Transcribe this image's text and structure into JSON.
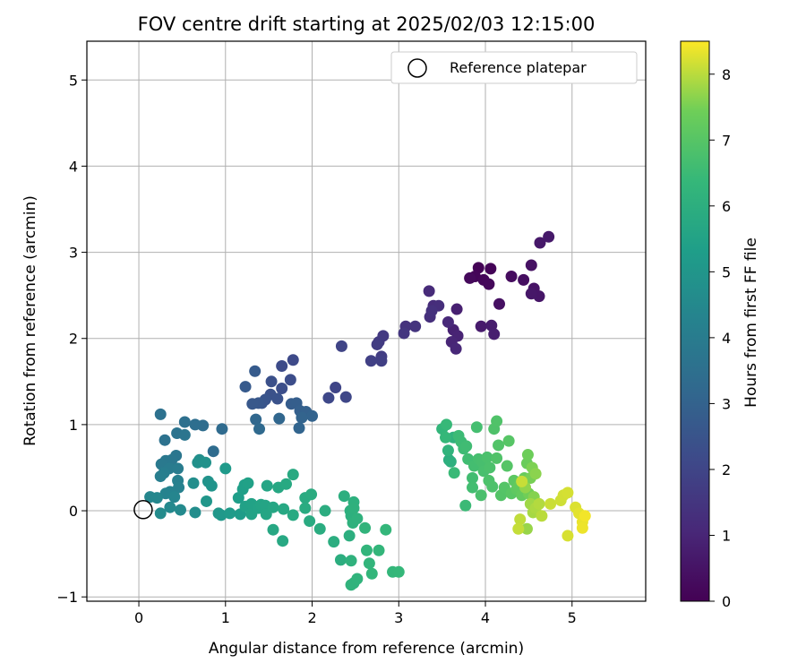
{
  "chart_data": {
    "type": "scatter",
    "title": "FOV centre drift starting at 2025/02/03 12:15:00",
    "xlabel": "Angular distance from reference (arcmin)",
    "ylabel": "Rotation from reference (arcmin)",
    "xlim": [
      -0.6,
      5.85
    ],
    "ylim": [
      -1.05,
      5.45
    ],
    "x_ticks": [
      0,
      1,
      2,
      3,
      4,
      5
    ],
    "y_ticks": [
      -1,
      0,
      1,
      2,
      3,
      4,
      5
    ],
    "x_tick_labels": [
      "0",
      "1",
      "2",
      "3",
      "4",
      "5"
    ],
    "y_tick_labels": [
      "−1",
      "0",
      "1",
      "2",
      "3",
      "4",
      "5"
    ],
    "grid": true,
    "legend": {
      "position": "top-right",
      "entries": [
        "Reference platepar"
      ]
    },
    "reference_point": {
      "x": 0,
      "y": 0
    },
    "colorbar": {
      "label": "Hours from first FF file",
      "range": [
        0,
        8.5
      ],
      "ticks": [
        0,
        1,
        2,
        3,
        4,
        5,
        6,
        7,
        8
      ],
      "tick_labels": [
        "0",
        "1",
        "2",
        "3",
        "4",
        "5",
        "6",
        "7",
        "8"
      ],
      "colormap": "viridis"
    },
    "points": [
      {
        "x": 3.92,
        "y": 2.82,
        "h": 0.05
      },
      {
        "x": 4.06,
        "y": 2.81,
        "h": 0.08
      },
      {
        "x": 3.88,
        "y": 2.72,
        "h": 0.12
      },
      {
        "x": 3.98,
        "y": 2.68,
        "h": 0.15
      },
      {
        "x": 4.04,
        "y": 2.63,
        "h": 0.18
      },
      {
        "x": 3.82,
        "y": 2.7,
        "h": 0.22
      },
      {
        "x": 4.3,
        "y": 2.72,
        "h": 0.3
      },
      {
        "x": 4.44,
        "y": 2.68,
        "h": 0.35
      },
      {
        "x": 4.16,
        "y": 2.4,
        "h": 0.4
      },
      {
        "x": 4.53,
        "y": 2.85,
        "h": 0.45
      },
      {
        "x": 4.56,
        "y": 2.58,
        "h": 0.5
      },
      {
        "x": 4.62,
        "y": 2.49,
        "h": 0.55
      },
      {
        "x": 4.53,
        "y": 2.52,
        "h": 0.6
      },
      {
        "x": 4.63,
        "y": 3.11,
        "h": 0.62
      },
      {
        "x": 4.73,
        "y": 3.18,
        "h": 0.65
      },
      {
        "x": 3.95,
        "y": 2.14,
        "h": 0.7
      },
      {
        "x": 4.07,
        "y": 2.15,
        "h": 0.75
      },
      {
        "x": 4.1,
        "y": 2.05,
        "h": 0.8
      },
      {
        "x": 3.67,
        "y": 2.34,
        "h": 0.85
      },
      {
        "x": 3.63,
        "y": 2.1,
        "h": 0.9
      },
      {
        "x": 3.68,
        "y": 2.03,
        "h": 0.95
      },
      {
        "x": 3.61,
        "y": 1.96,
        "h": 1.0
      },
      {
        "x": 3.66,
        "y": 1.88,
        "h": 1.05
      },
      {
        "x": 3.57,
        "y": 2.19,
        "h": 1.1
      },
      {
        "x": 3.35,
        "y": 2.55,
        "h": 1.15
      },
      {
        "x": 3.4,
        "y": 2.38,
        "h": 1.2
      },
      {
        "x": 3.46,
        "y": 2.38,
        "h": 1.25
      },
      {
        "x": 3.36,
        "y": 2.25,
        "h": 1.3
      },
      {
        "x": 3.38,
        "y": 2.32,
        "h": 1.35
      },
      {
        "x": 3.08,
        "y": 2.14,
        "h": 1.4
      },
      {
        "x": 3.19,
        "y": 2.14,
        "h": 1.45
      },
      {
        "x": 3.06,
        "y": 2.06,
        "h": 1.5
      },
      {
        "x": 2.82,
        "y": 2.03,
        "h": 1.6
      },
      {
        "x": 2.77,
        "y": 1.96,
        "h": 1.65
      },
      {
        "x": 2.75,
        "y": 1.93,
        "h": 1.7
      },
      {
        "x": 2.8,
        "y": 1.79,
        "h": 1.75
      },
      {
        "x": 2.8,
        "y": 1.74,
        "h": 1.8
      },
      {
        "x": 2.68,
        "y": 1.74,
        "h": 1.85
      },
      {
        "x": 2.34,
        "y": 1.91,
        "h": 1.95
      },
      {
        "x": 2.27,
        "y": 1.43,
        "h": 2.0
      },
      {
        "x": 2.39,
        "y": 1.32,
        "h": 2.05
      },
      {
        "x": 2.19,
        "y": 1.31,
        "h": 2.1
      },
      {
        "x": 1.78,
        "y": 1.75,
        "h": 2.15
      },
      {
        "x": 1.65,
        "y": 1.68,
        "h": 2.2
      },
      {
        "x": 1.75,
        "y": 1.52,
        "h": 2.25
      },
      {
        "x": 1.65,
        "y": 1.42,
        "h": 2.3
      },
      {
        "x": 1.53,
        "y": 1.5,
        "h": 2.35
      },
      {
        "x": 1.52,
        "y": 1.35,
        "h": 2.4
      },
      {
        "x": 1.6,
        "y": 1.3,
        "h": 2.45
      },
      {
        "x": 1.46,
        "y": 1.29,
        "h": 2.5
      },
      {
        "x": 1.42,
        "y": 1.25,
        "h": 2.55
      },
      {
        "x": 1.38,
        "y": 1.25,
        "h": 2.6
      },
      {
        "x": 1.31,
        "y": 1.24,
        "h": 2.65
      },
      {
        "x": 1.23,
        "y": 1.44,
        "h": 2.7
      },
      {
        "x": 1.34,
        "y": 1.62,
        "h": 2.75
      },
      {
        "x": 1.76,
        "y": 1.24,
        "h": 2.8
      },
      {
        "x": 1.82,
        "y": 1.25,
        "h": 2.85
      },
      {
        "x": 1.86,
        "y": 1.16,
        "h": 2.9
      },
      {
        "x": 1.93,
        "y": 1.15,
        "h": 2.95
      },
      {
        "x": 2.0,
        "y": 1.1,
        "h": 3.0
      },
      {
        "x": 1.88,
        "y": 1.08,
        "h": 3.05
      },
      {
        "x": 1.85,
        "y": 0.96,
        "h": 3.1
      },
      {
        "x": 1.62,
        "y": 1.07,
        "h": 3.15
      },
      {
        "x": 1.35,
        "y": 1.06,
        "h": 3.2
      },
      {
        "x": 1.39,
        "y": 0.95,
        "h": 3.25
      },
      {
        "x": 0.96,
        "y": 0.95,
        "h": 3.3
      },
      {
        "x": 0.86,
        "y": 0.69,
        "h": 3.35
      },
      {
        "x": 0.74,
        "y": 0.99,
        "h": 3.4
      },
      {
        "x": 0.65,
        "y": 1.0,
        "h": 3.45
      },
      {
        "x": 0.53,
        "y": 1.03,
        "h": 3.5
      },
      {
        "x": 0.25,
        "y": 1.12,
        "h": 3.55
      },
      {
        "x": 0.3,
        "y": 0.82,
        "h": 3.6
      },
      {
        "x": 0.44,
        "y": 0.9,
        "h": 3.65
      },
      {
        "x": 0.53,
        "y": 0.88,
        "h": 3.7
      },
      {
        "x": 0.43,
        "y": 0.64,
        "h": 3.75
      },
      {
        "x": 0.38,
        "y": 0.59,
        "h": 3.8
      },
      {
        "x": 0.31,
        "y": 0.58,
        "h": 3.85
      },
      {
        "x": 0.26,
        "y": 0.54,
        "h": 3.9
      },
      {
        "x": 0.35,
        "y": 0.49,
        "h": 3.95
      },
      {
        "x": 0.45,
        "y": 0.49,
        "h": 4.0
      },
      {
        "x": 0.29,
        "y": 0.44,
        "h": 4.05
      },
      {
        "x": 0.25,
        "y": 0.4,
        "h": 4.1
      },
      {
        "x": 0.45,
        "y": 0.35,
        "h": 4.15
      },
      {
        "x": 0.46,
        "y": 0.27,
        "h": 4.2
      },
      {
        "x": 0.36,
        "y": 0.22,
        "h": 4.25
      },
      {
        "x": 0.31,
        "y": 0.2,
        "h": 4.3
      },
      {
        "x": 0.41,
        "y": 0.16,
        "h": 4.35
      },
      {
        "x": 0.13,
        "y": 0.16,
        "h": 4.4
      },
      {
        "x": 0.21,
        "y": 0.15,
        "h": 4.45
      },
      {
        "x": 0.36,
        "y": 0.04,
        "h": 4.5
      },
      {
        "x": 0.48,
        "y": 0.01,
        "h": 4.55
      },
      {
        "x": 0.25,
        "y": -0.03,
        "h": 4.6
      },
      {
        "x": 0.65,
        "y": -0.02,
        "h": 4.65
      },
      {
        "x": 0.63,
        "y": 0.32,
        "h": 4.7
      },
      {
        "x": 0.7,
        "y": 0.59,
        "h": 4.75
      },
      {
        "x": 0.68,
        "y": 0.56,
        "h": 4.8
      },
      {
        "x": 0.77,
        "y": 0.56,
        "h": 4.85
      },
      {
        "x": 0.8,
        "y": 0.34,
        "h": 4.9
      },
      {
        "x": 0.84,
        "y": 0.29,
        "h": 4.95
      },
      {
        "x": 0.78,
        "y": 0.11,
        "h": 5.0
      },
      {
        "x": 0.92,
        "y": -0.03,
        "h": 5.05
      },
      {
        "x": 0.95,
        "y": -0.05,
        "h": 5.1
      },
      {
        "x": 1.0,
        "y": 0.49,
        "h": 5.15
      },
      {
        "x": 1.05,
        "y": -0.03,
        "h": 5.2
      },
      {
        "x": 1.17,
        "y": -0.04,
        "h": 5.25
      },
      {
        "x": 1.15,
        "y": 0.15,
        "h": 5.3
      },
      {
        "x": 1.2,
        "y": 0.25,
        "h": 5.35
      },
      {
        "x": 1.22,
        "y": 0.3,
        "h": 5.38
      },
      {
        "x": 1.26,
        "y": 0.32,
        "h": 5.42
      },
      {
        "x": 1.23,
        "y": 0.05,
        "h": 5.45
      },
      {
        "x": 1.3,
        "y": 0.08,
        "h": 5.48
      },
      {
        "x": 1.3,
        "y": -0.04,
        "h": 5.5
      },
      {
        "x": 1.38,
        "y": 0.03,
        "h": 5.52
      },
      {
        "x": 1.41,
        "y": 0.07,
        "h": 5.55
      },
      {
        "x": 1.46,
        "y": 0.06,
        "h": 5.58
      },
      {
        "x": 1.48,
        "y": 0.29,
        "h": 5.6
      },
      {
        "x": 1.47,
        "y": -0.04,
        "h": 5.62
      },
      {
        "x": 1.55,
        "y": 0.04,
        "h": 5.65
      },
      {
        "x": 1.55,
        "y": -0.22,
        "h": 5.68
      },
      {
        "x": 1.61,
        "y": 0.27,
        "h": 5.7
      },
      {
        "x": 1.67,
        "y": 0.02,
        "h": 5.72
      },
      {
        "x": 1.66,
        "y": -0.35,
        "h": 5.74
      },
      {
        "x": 1.7,
        "y": 0.31,
        "h": 5.76
      },
      {
        "x": 1.78,
        "y": 0.42,
        "h": 5.78
      },
      {
        "x": 1.78,
        "y": -0.05,
        "h": 5.8
      },
      {
        "x": 1.92,
        "y": 0.15,
        "h": 5.82
      },
      {
        "x": 1.97,
        "y": -0.12,
        "h": 5.84
      },
      {
        "x": 1.92,
        "y": 0.03,
        "h": 5.86
      },
      {
        "x": 1.99,
        "y": 0.19,
        "h": 5.88
      },
      {
        "x": 2.09,
        "y": -0.21,
        "h": 5.9
      },
      {
        "x": 2.15,
        "y": 0.0,
        "h": 5.92
      },
      {
        "x": 2.25,
        "y": -0.36,
        "h": 5.94
      },
      {
        "x": 2.33,
        "y": -0.57,
        "h": 5.96
      },
      {
        "x": 2.37,
        "y": 0.17,
        "h": 5.98
      },
      {
        "x": 2.43,
        "y": -0.29,
        "h": 6.0
      },
      {
        "x": 2.44,
        "y": 0.0,
        "h": 6.02
      },
      {
        "x": 2.45,
        "y": -0.06,
        "h": 6.04
      },
      {
        "x": 2.48,
        "y": 0.1,
        "h": 6.06
      },
      {
        "x": 2.48,
        "y": 0.03,
        "h": 6.08
      },
      {
        "x": 2.47,
        "y": -0.14,
        "h": 6.1
      },
      {
        "x": 2.52,
        "y": -0.09,
        "h": 6.12
      },
      {
        "x": 2.45,
        "y": -0.58,
        "h": 6.14
      },
      {
        "x": 2.48,
        "y": -0.84,
        "h": 6.16
      },
      {
        "x": 2.45,
        "y": -0.86,
        "h": 6.18
      },
      {
        "x": 2.52,
        "y": -0.79,
        "h": 6.2
      },
      {
        "x": 2.61,
        "y": -0.2,
        "h": 6.22
      },
      {
        "x": 2.63,
        "y": -0.46,
        "h": 6.24
      },
      {
        "x": 2.66,
        "y": -0.61,
        "h": 6.26
      },
      {
        "x": 2.69,
        "y": -0.73,
        "h": 6.28
      },
      {
        "x": 2.77,
        "y": -0.46,
        "h": 6.3
      },
      {
        "x": 2.85,
        "y": -0.22,
        "h": 6.32
      },
      {
        "x": 2.93,
        "y": -0.71,
        "h": 6.34
      },
      {
        "x": 3.0,
        "y": -0.71,
        "h": 6.36
      },
      {
        "x": 3.58,
        "y": 0.59,
        "h": 5.95
      },
      {
        "x": 3.6,
        "y": 0.57,
        "h": 6.05
      },
      {
        "x": 3.63,
        "y": 0.85,
        "h": 6.12
      },
      {
        "x": 3.57,
        "y": 0.7,
        "h": 6.2
      },
      {
        "x": 3.5,
        "y": 0.95,
        "h": 6.3
      },
      {
        "x": 3.54,
        "y": 0.85,
        "h": 6.38
      },
      {
        "x": 3.55,
        "y": 1.0,
        "h": 6.42
      },
      {
        "x": 3.64,
        "y": 0.44,
        "h": 6.45
      },
      {
        "x": 3.77,
        "y": 0.06,
        "h": 6.48
      },
      {
        "x": 3.69,
        "y": 0.87,
        "h": 6.5
      },
      {
        "x": 3.72,
        "y": 0.8,
        "h": 6.52
      },
      {
        "x": 3.75,
        "y": 0.72,
        "h": 6.55
      },
      {
        "x": 3.78,
        "y": 0.75,
        "h": 6.58
      },
      {
        "x": 3.8,
        "y": 0.6,
        "h": 6.6
      },
      {
        "x": 3.85,
        "y": 0.38,
        "h": 6.62
      },
      {
        "x": 3.85,
        "y": 0.27,
        "h": 6.64
      },
      {
        "x": 3.87,
        "y": 0.52,
        "h": 6.66
      },
      {
        "x": 3.9,
        "y": 0.97,
        "h": 6.68
      },
      {
        "x": 3.92,
        "y": 0.6,
        "h": 6.7
      },
      {
        "x": 3.96,
        "y": 0.57,
        "h": 6.72
      },
      {
        "x": 3.98,
        "y": 0.46,
        "h": 6.74
      },
      {
        "x": 3.95,
        "y": 0.18,
        "h": 6.76
      },
      {
        "x": 4.02,
        "y": 0.62,
        "h": 6.78
      },
      {
        "x": 4.05,
        "y": 0.5,
        "h": 6.8
      },
      {
        "x": 4.04,
        "y": 0.35,
        "h": 6.82
      },
      {
        "x": 4.08,
        "y": 0.28,
        "h": 6.84
      },
      {
        "x": 4.1,
        "y": 0.95,
        "h": 6.86
      },
      {
        "x": 4.13,
        "y": 1.04,
        "h": 6.88
      },
      {
        "x": 4.13,
        "y": 0.61,
        "h": 6.9
      },
      {
        "x": 4.15,
        "y": 0.76,
        "h": 6.92
      },
      {
        "x": 4.18,
        "y": 0.18,
        "h": 6.94
      },
      {
        "x": 4.22,
        "y": 0.27,
        "h": 6.96
      },
      {
        "x": 4.25,
        "y": 0.52,
        "h": 6.98
      },
      {
        "x": 4.27,
        "y": 0.81,
        "h": 7.0
      },
      {
        "x": 4.3,
        "y": 0.2,
        "h": 7.05
      },
      {
        "x": 4.33,
        "y": 0.35,
        "h": 7.1
      },
      {
        "x": 4.36,
        "y": 0.25,
        "h": 7.15
      },
      {
        "x": 4.38,
        "y": 0.28,
        "h": 7.2
      },
      {
        "x": 4.42,
        "y": 0.18,
        "h": 7.25
      },
      {
        "x": 4.45,
        "y": 0.38,
        "h": 7.3
      },
      {
        "x": 4.48,
        "y": 0.55,
        "h": 7.35
      },
      {
        "x": 4.49,
        "y": 0.65,
        "h": 7.4
      },
      {
        "x": 4.5,
        "y": 0.2,
        "h": 7.45
      },
      {
        "x": 4.52,
        "y": 0.38,
        "h": 7.5
      },
      {
        "x": 4.54,
        "y": 0.5,
        "h": 7.55
      },
      {
        "x": 4.56,
        "y": 0.16,
        "h": 7.6
      },
      {
        "x": 4.58,
        "y": 0.43,
        "h": 7.65
      },
      {
        "x": 4.46,
        "y": 0.27,
        "h": 7.7
      },
      {
        "x": 4.48,
        "y": -0.21,
        "h": 7.75
      },
      {
        "x": 4.52,
        "y": 0.08,
        "h": 7.8
      },
      {
        "x": 4.55,
        "y": -0.02,
        "h": 7.85
      },
      {
        "x": 4.58,
        "y": 0.03,
        "h": 7.9
      },
      {
        "x": 4.62,
        "y": 0.08,
        "h": 7.95
      },
      {
        "x": 4.65,
        "y": -0.06,
        "h": 8.0
      },
      {
        "x": 4.4,
        "y": -0.1,
        "h": 8.05
      },
      {
        "x": 4.38,
        "y": -0.21,
        "h": 8.08
      },
      {
        "x": 4.42,
        "y": 0.34,
        "h": 8.1
      },
      {
        "x": 4.75,
        "y": 0.08,
        "h": 8.12
      },
      {
        "x": 4.87,
        "y": 0.12,
        "h": 8.15
      },
      {
        "x": 4.9,
        "y": 0.18,
        "h": 8.18
      },
      {
        "x": 4.95,
        "y": 0.21,
        "h": 8.2
      },
      {
        "x": 4.95,
        "y": -0.29,
        "h": 8.22
      },
      {
        "x": 5.04,
        "y": 0.04,
        "h": 8.25
      },
      {
        "x": 5.08,
        "y": -0.03,
        "h": 8.3
      },
      {
        "x": 5.12,
        "y": -0.13,
        "h": 8.35
      },
      {
        "x": 5.12,
        "y": -0.2,
        "h": 8.38
      },
      {
        "x": 5.15,
        "y": -0.06,
        "h": 8.42
      }
    ]
  }
}
